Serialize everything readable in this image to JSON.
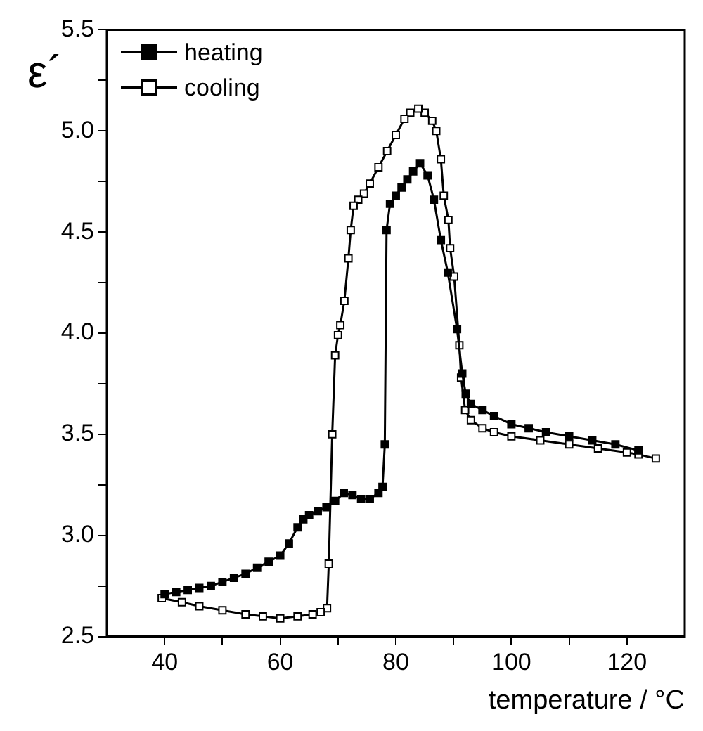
{
  "chart_data": {
    "type": "line",
    "xlabel": "temperature / °C",
    "ylabel": "ε´",
    "xlim": [
      30,
      130
    ],
    "ylim": [
      2.5,
      5.5
    ],
    "xticks": [
      40,
      {
        "value": 50,
        "label": null
      },
      60,
      {
        "value": 70,
        "label": null
      },
      80,
      {
        "value": 90,
        "label": null
      },
      100,
      {
        "value": 110,
        "label": null
      },
      120
    ],
    "yticks": [
      2.5,
      {
        "value": 2.75,
        "label": null
      },
      "3.0",
      {
        "value": 3.25,
        "label": null
      },
      3.5,
      {
        "value": 3.75,
        "label": null
      },
      "4.0",
      {
        "value": 4.25,
        "label": null
      },
      4.5,
      {
        "value": 4.75,
        "label": null
      },
      "5.0",
      {
        "value": 5.25,
        "label": null
      },
      5.5
    ],
    "grid": false,
    "legend": "top left",
    "marker": "square",
    "line_style": "solid",
    "series": [
      {
        "name": "heating",
        "color": "#000000",
        "x": [
          40,
          42,
          44,
          46,
          48,
          50,
          52,
          54,
          56,
          58,
          60,
          61.5,
          63,
          64,
          65,
          66.5,
          68,
          69.5,
          71,
          72.5,
          74,
          75.5,
          77,
          77.7,
          78.1,
          78.4,
          79,
          80,
          81,
          82,
          83,
          84.2,
          85.5,
          86.6,
          87.8,
          89,
          90.6,
          91.5,
          92.1,
          93,
          95,
          97,
          100,
          103,
          106,
          110,
          114,
          118,
          122
        ],
        "values": [
          2.71,
          2.72,
          2.73,
          2.74,
          2.75,
          2.77,
          2.79,
          2.81,
          2.84,
          2.87,
          2.9,
          2.96,
          3.04,
          3.08,
          3.1,
          3.12,
          3.14,
          3.17,
          3.21,
          3.2,
          3.18,
          3.18,
          3.21,
          3.24,
          3.45,
          4.51,
          4.64,
          4.68,
          4.72,
          4.76,
          4.8,
          4.84,
          4.78,
          4.66,
          4.46,
          4.3,
          4.02,
          3.8,
          3.7,
          3.65,
          3.62,
          3.59,
          3.55,
          3.53,
          3.51,
          3.49,
          3.47,
          3.45,
          3.42
        ]
      },
      {
        "name": "cooling",
        "color": "#000000",
        "x": [
          125,
          122,
          120,
          115,
          110,
          105,
          100,
          97,
          95,
          93,
          92,
          91.3,
          91,
          90.1,
          89.4,
          89.1,
          88.3,
          87.8,
          87,
          86.3,
          85,
          83.9,
          82.5,
          81.5,
          80,
          78.5,
          77,
          75.5,
          74.5,
          73.5,
          72.7,
          72.2,
          71.8,
          71.1,
          70.4,
          70,
          69.5,
          69,
          68.4,
          68.1,
          67,
          65.6,
          63,
          60,
          57,
          54,
          50,
          46,
          43,
          39.5
        ],
        "values": [
          3.38,
          3.4,
          3.41,
          3.43,
          3.45,
          3.47,
          3.49,
          3.51,
          3.53,
          3.57,
          3.62,
          3.78,
          3.94,
          4.28,
          4.42,
          4.56,
          4.68,
          4.86,
          5,
          5.05,
          5.09,
          5.11,
          5.09,
          5.06,
          4.98,
          4.9,
          4.82,
          4.74,
          4.69,
          4.66,
          4.63,
          4.51,
          4.37,
          4.16,
          4.04,
          3.99,
          3.89,
          3.5,
          2.86,
          2.64,
          2.62,
          2.61,
          2.6,
          2.59,
          2.6,
          2.61,
          2.63,
          2.65,
          2.67,
          2.69
        ]
      }
    ]
  }
}
